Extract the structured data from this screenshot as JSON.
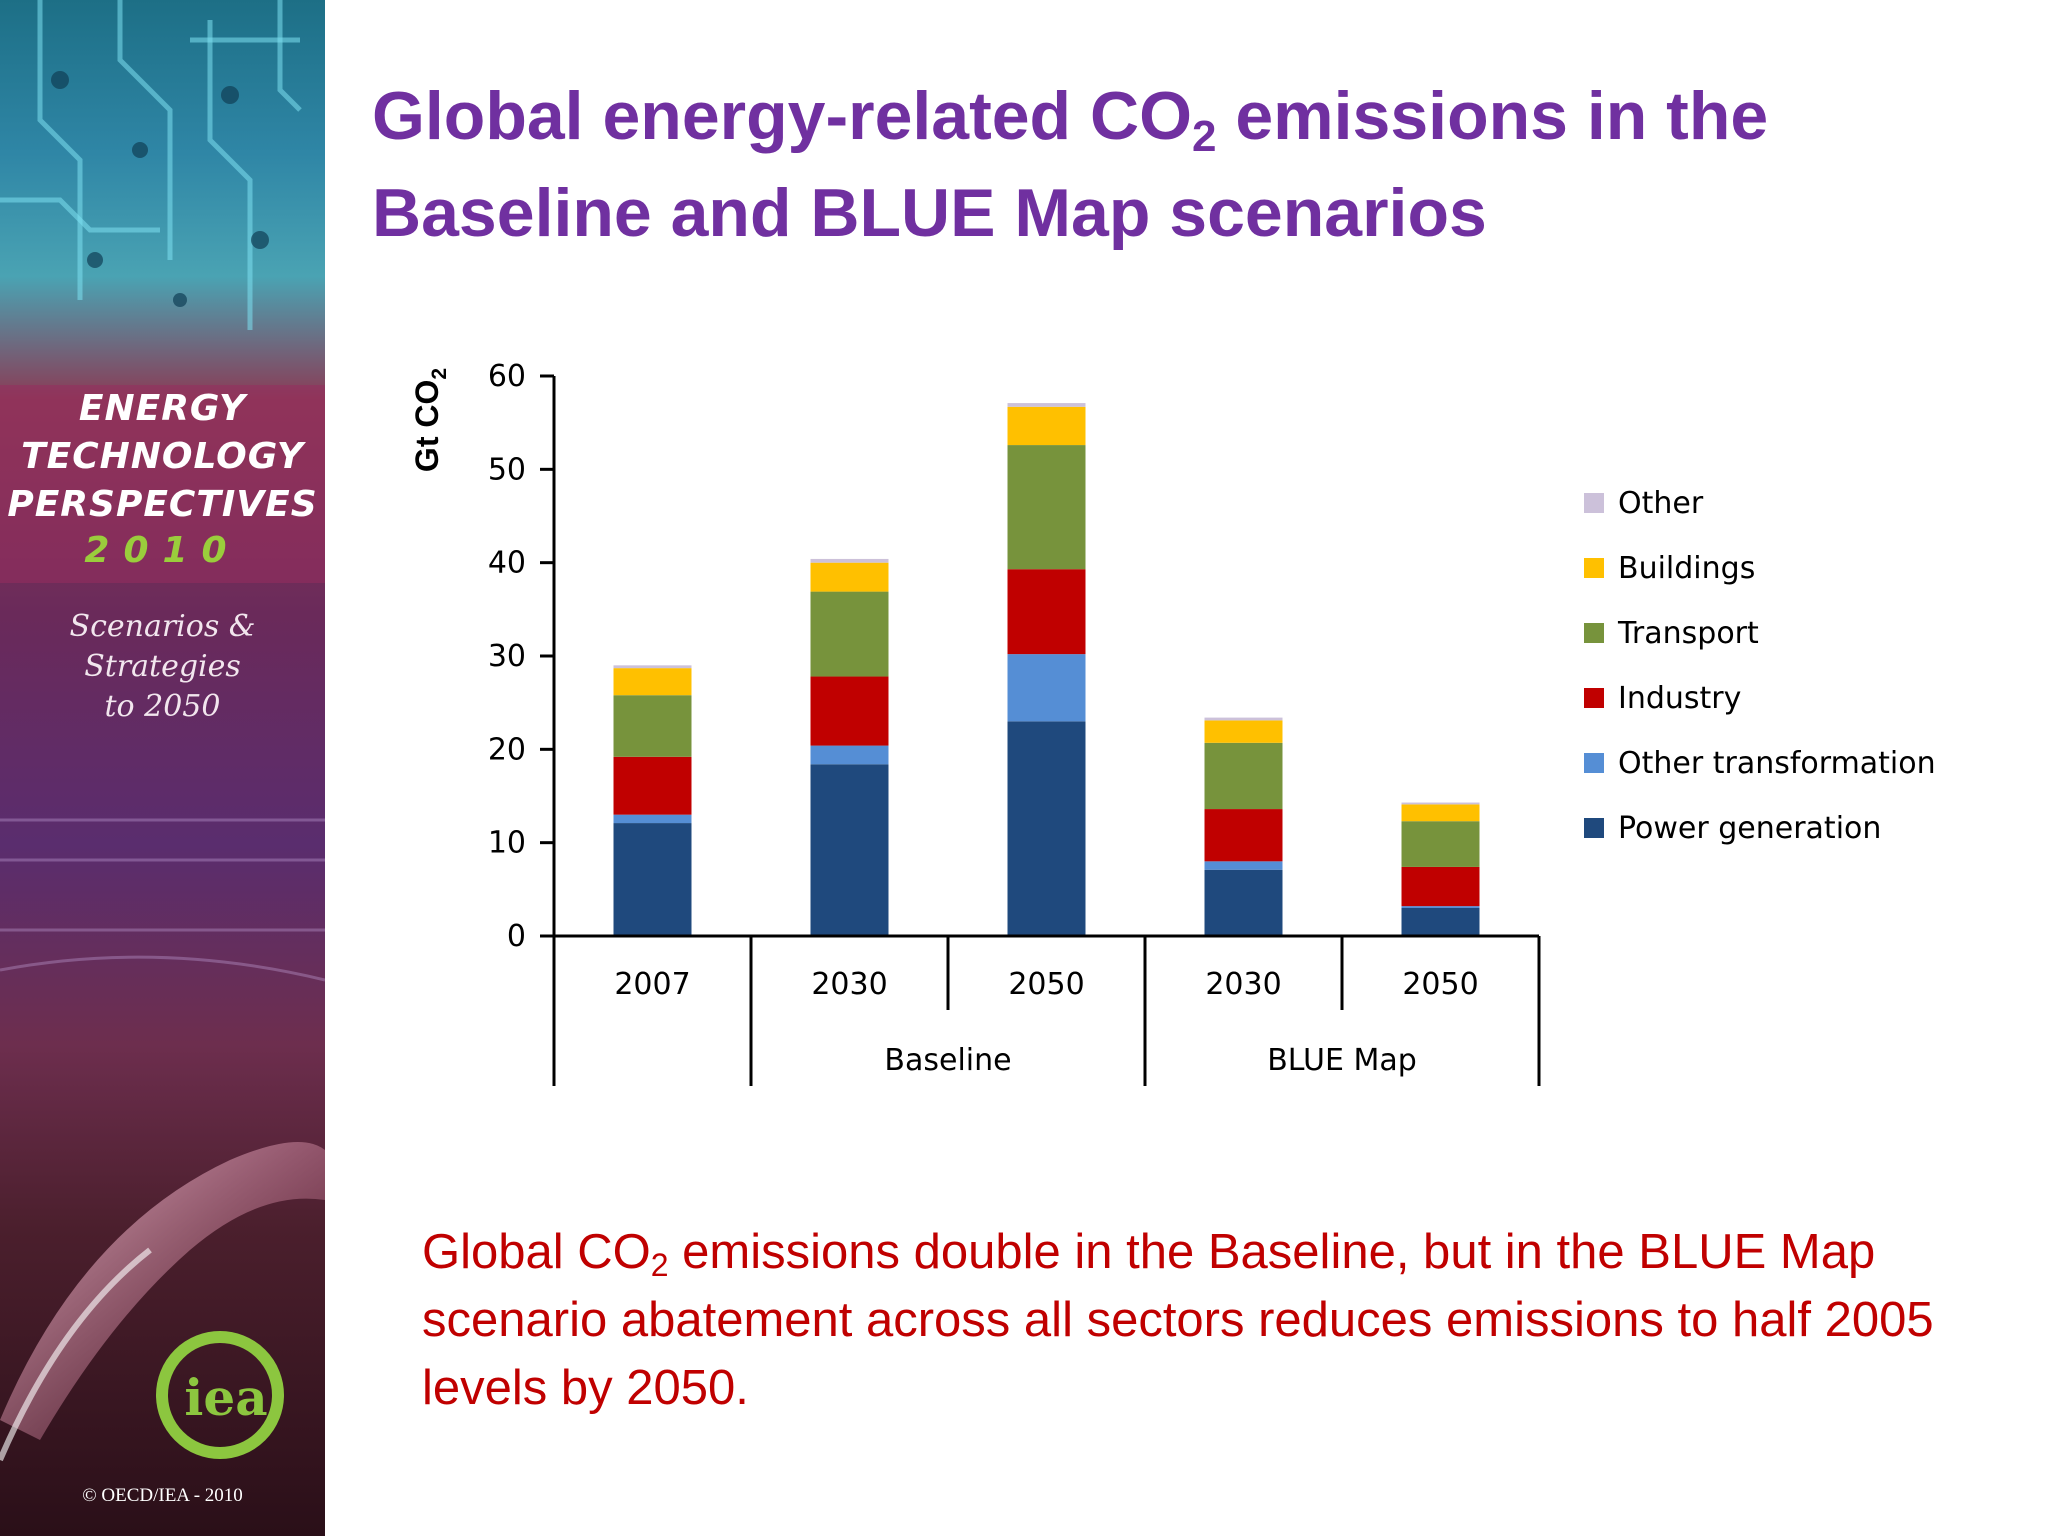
{
  "sidebar": {
    "title_lines": [
      "ENERGY",
      "TECHNOLOGY",
      "PERSPECTIVES"
    ],
    "year": "2010",
    "subtitle_lines": [
      "Scenarios &",
      "Strategies",
      "to 2050"
    ],
    "logo_text": "iea",
    "copyright": "© OECD/IEA - 2010"
  },
  "slide": {
    "title_part1": "Global energy-related CO",
    "title_sub": "2",
    "title_part2": " emissions in the Baseline and BLUE Map scenarios",
    "note_part1": "Global CO",
    "note_sub": "2",
    "note_part2": " emissions double in the Baseline, but in the BLUE Map scenario abatement across all sectors reduces emissions to half 2005 levels by 2050."
  },
  "chart_data": {
    "type": "bar",
    "stacked": true,
    "ylabel": "Gt CO",
    "ylabel_sub": "2",
    "ylim": [
      0,
      60
    ],
    "yticks": [
      0,
      10,
      20,
      30,
      40,
      50,
      60
    ],
    "categories": [
      "2007",
      "2030",
      "2050",
      "2030",
      "2050"
    ],
    "groups": [
      {
        "label": "",
        "categories": [
          0
        ]
      },
      {
        "label": "Baseline",
        "categories": [
          1,
          2
        ]
      },
      {
        "label": "BLUE Map",
        "categories": [
          3,
          4
        ]
      }
    ],
    "legend_position": "right",
    "series": [
      {
        "name": "Power generation",
        "color": "#1f497d",
        "values": [
          12.1,
          18.4,
          23.0,
          7.1,
          3.0
        ]
      },
      {
        "name": "Other transformation",
        "color": "#558ed5",
        "values": [
          0.9,
          2.0,
          7.2,
          0.9,
          0.2
        ]
      },
      {
        "name": "Industry",
        "color": "#c00000",
        "values": [
          6.2,
          7.4,
          9.1,
          5.6,
          4.2
        ]
      },
      {
        "name": "Transport",
        "color": "#77933c",
        "values": [
          6.6,
          9.1,
          13.3,
          7.1,
          4.9
        ]
      },
      {
        "name": "Buildings",
        "color": "#ffc000",
        "values": [
          2.9,
          3.1,
          4.1,
          2.4,
          1.8
        ]
      },
      {
        "name": "Other",
        "color": "#ccc1da",
        "values": [
          0.3,
          0.4,
          0.4,
          0.3,
          0.2
        ]
      }
    ]
  }
}
